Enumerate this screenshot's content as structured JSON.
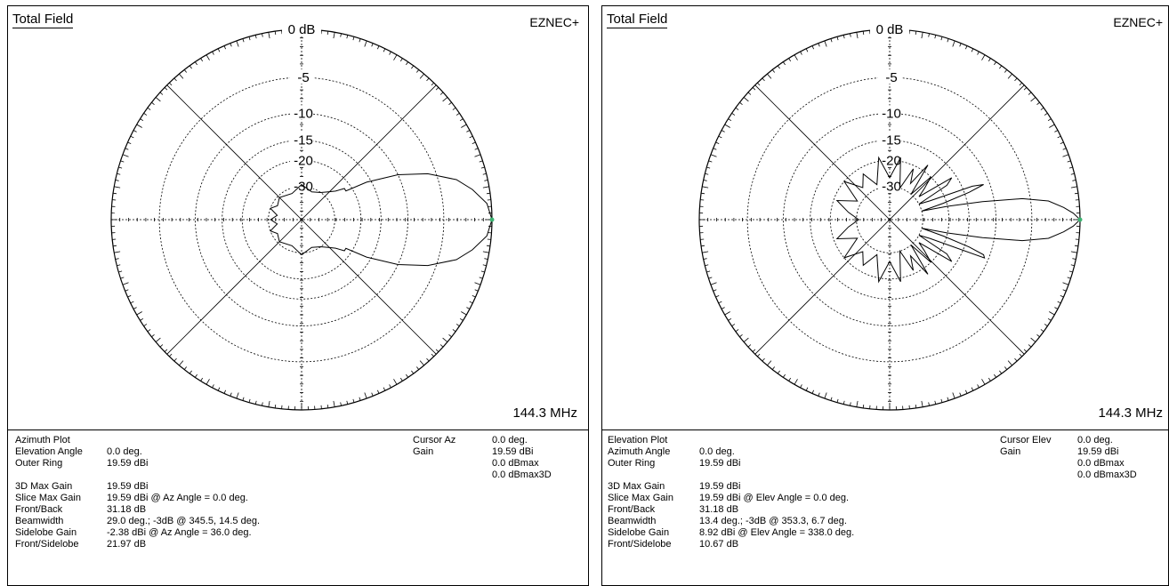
{
  "panels": [
    {
      "title": "Total Field",
      "brand": "EZNEC+",
      "frequency": "144.3 MHz",
      "plot_type": "Azimuth Plot",
      "params": [
        {
          "label": "Elevation Angle",
          "value": "0.0 deg."
        },
        {
          "label": "Outer Ring",
          "value": "19.59 dBi"
        }
      ],
      "cursor": {
        "label": "Cursor Az",
        "value": "0.0 deg.",
        "gain_label": "Gain",
        "gain_values": [
          "19.59 dBi",
          "0.0 dBmax",
          "0.0 dBmax3D"
        ]
      },
      "stats": [
        {
          "label": "3D Max Gain",
          "value": "19.59 dBi"
        },
        {
          "label": "Slice Max Gain",
          "value": "19.59 dBi @ Az Angle = 0.0 deg."
        },
        {
          "label": "Front/Back",
          "value": "31.18 dB"
        },
        {
          "label": "Beamwidth",
          "value": "29.0 deg.; -3dB @ 345.5, 14.5 deg."
        },
        {
          "label": "Sidelobe Gain",
          "value": "-2.38 dBi @ Az Angle = 36.0 deg."
        },
        {
          "label": "Front/Sidelobe",
          "value": "21.97 dB"
        }
      ]
    },
    {
      "title": "Total Field",
      "brand": "EZNEC+",
      "frequency": "144.3 MHz",
      "plot_type": "Elevation Plot",
      "params": [
        {
          "label": "Azimuth Angle",
          "value": "0.0 deg."
        },
        {
          "label": "Outer Ring",
          "value": "19.59 dBi"
        }
      ],
      "cursor": {
        "label": "Cursor Elev",
        "value": "0.0 deg.",
        "gain_label": "Gain",
        "gain_values": [
          "19.59 dBi",
          "0.0 dBmax",
          "0.0 dBmax3D"
        ]
      },
      "stats": [
        {
          "label": "3D Max Gain",
          "value": "19.59 dBi"
        },
        {
          "label": "Slice Max Gain",
          "value": "19.59 dBi @ Elev Angle = 0.0 deg."
        },
        {
          "label": "Front/Back",
          "value": "31.18 dB"
        },
        {
          "label": "Beamwidth",
          "value": "13.4 deg.; -3dB @ 353.3, 6.7 deg."
        },
        {
          "label": "Sidelobe Gain",
          "value": "8.92 dBi @ Elev Angle = 338.0 deg."
        },
        {
          "label": "Front/Sidelobe",
          "value": "10.67 dB"
        }
      ]
    }
  ],
  "chart_data": [
    {
      "type": "polar",
      "title": "Total Field",
      "ring_labels": [
        "0 dB",
        "-5",
        "-10",
        "-15",
        "-20",
        "-30"
      ],
      "ring_db": [
        0,
        -5,
        -10,
        -15,
        -20,
        -30
      ],
      "radial_lines_deg": [
        0,
        45,
        90,
        135
      ],
      "grid": true,
      "series": [
        {
          "angles_deg": [
            0,
            5,
            10,
            14.5,
            20,
            25,
            30,
            33,
            36,
            40,
            45,
            55,
            70,
            90,
            110,
            135,
            150,
            160,
            170,
            180,
            190,
            200,
            210,
            225,
            250,
            270,
            290,
            305,
            315,
            320,
            324,
            327,
            330,
            335,
            340,
            345.5,
            350,
            355
          ],
          "db": [
            0,
            -0.4,
            -1.6,
            -3,
            -6,
            -10,
            -16,
            -22,
            -21.97,
            -25,
            -27,
            -30,
            -32,
            -29,
            -33,
            -31,
            -33,
            -30,
            -35,
            -31.18,
            -35,
            -30,
            -33,
            -31,
            -33,
            -29,
            -32,
            -30,
            -27,
            -25,
            -21.97,
            -22,
            -16,
            -10,
            -6,
            -3,
            -1.6,
            -0.4
          ]
        }
      ],
      "cursor_point": {
        "angle_deg": 0,
        "db": 0
      }
    },
    {
      "type": "polar",
      "title": "Total Field",
      "ring_labels": [
        "0 dB",
        "-5",
        "-10",
        "-15",
        "-20",
        "-30"
      ],
      "ring_db": [
        0,
        -5,
        -10,
        -15,
        -20,
        -30
      ],
      "radial_lines_deg": [
        0,
        45,
        90,
        135
      ],
      "grid": true,
      "series": [
        {
          "angles_deg": [
            0,
            2,
            4,
            6.7,
            9,
            11,
            13,
            15,
            17,
            19,
            20.5,
            22,
            25,
            28,
            31,
            34,
            38,
            42,
            46,
            50,
            55,
            60,
            65,
            72,
            80,
            90,
            100,
            110,
            120,
            130,
            140,
            150,
            160,
            170,
            180,
            190,
            200,
            210,
            220,
            230,
            240,
            250,
            260,
            270,
            280,
            288,
            295,
            300,
            305,
            310,
            314,
            318,
            322,
            326,
            329,
            332,
            335,
            338,
            339.5,
            341,
            343,
            345,
            347,
            349,
            351,
            353.3,
            356,
            358
          ],
          "db": [
            0,
            -0.6,
            -1.5,
            -3,
            -6,
            -12,
            -20,
            -30,
            -21,
            -14,
            -11,
            -13,
            -25,
            -30,
            -18,
            -16,
            -28,
            -24,
            -20,
            -30,
            -18,
            -26,
            -21,
            -30,
            -19,
            -26,
            -19,
            -28,
            -22,
            -26,
            -20,
            -28,
            -21,
            -26,
            -31.18,
            -26,
            -21,
            -28,
            -20,
            -26,
            -22,
            -28,
            -19,
            -26,
            -19,
            -30,
            -21,
            -26,
            -18,
            -30,
            -20,
            -24,
            -28,
            -16,
            -18,
            -30,
            -25,
            -10.67,
            -11,
            -14,
            -21,
            -30,
            -20,
            -12,
            -6,
            -3,
            -1.5,
            -0.6
          ]
        }
      ],
      "cursor_point": {
        "angle_deg": 0,
        "db": 0
      }
    }
  ]
}
